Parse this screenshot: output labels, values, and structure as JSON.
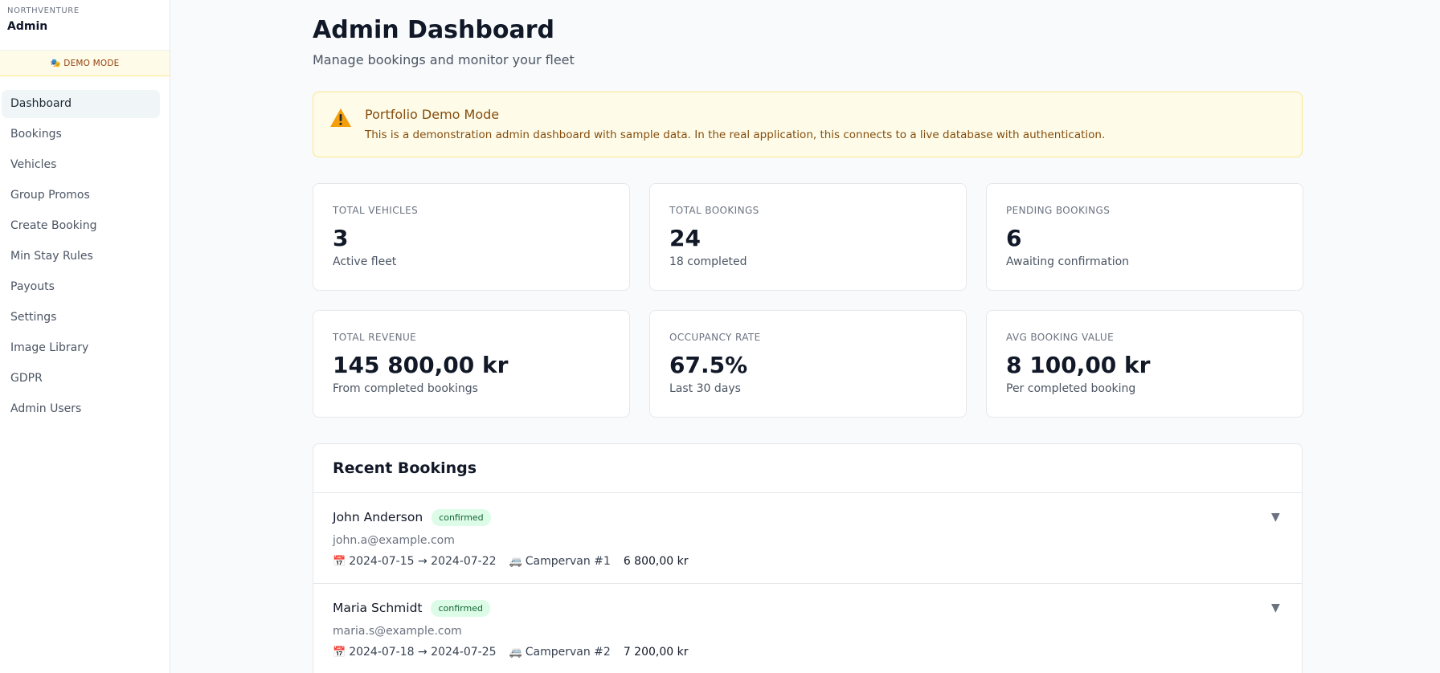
{
  "sidebar": {
    "brand_small": "NORTHVENTURE",
    "brand_title": "Admin",
    "demo_label": "🎭 DEMO MODE",
    "items": [
      {
        "label": "Dashboard",
        "active": true
      },
      {
        "label": "Bookings"
      },
      {
        "label": "Vehicles"
      },
      {
        "label": "Group Promos"
      },
      {
        "label": "Create Booking"
      },
      {
        "label": "Min Stay Rules"
      },
      {
        "label": "Payouts"
      },
      {
        "label": "Settings"
      },
      {
        "label": "Image Library"
      },
      {
        "label": "GDPR"
      },
      {
        "label": "Admin Users"
      }
    ]
  },
  "header": {
    "title": "Admin Dashboard",
    "subtitle": "Manage bookings and monitor your fleet"
  },
  "alert": {
    "icon": "warning-icon",
    "title": "Portfolio Demo Mode",
    "text": "This is a demonstration admin dashboard with sample data. In the real application, this connects to a live database with authentication."
  },
  "stats": [
    {
      "label": "TOTAL VEHICLES",
      "value": "3",
      "sub": "Active fleet"
    },
    {
      "label": "TOTAL BOOKINGS",
      "value": "24",
      "sub": "18 completed"
    },
    {
      "label": "PENDING BOOKINGS",
      "value": "6",
      "sub": "Awaiting confirmation"
    },
    {
      "label": "TOTAL REVENUE",
      "value": "145 800,00 kr",
      "sub": "From completed bookings"
    },
    {
      "label": "OCCUPANCY RATE",
      "value": "67.5%",
      "sub": "Last 30 days"
    },
    {
      "label": "AVG BOOKING VALUE",
      "value": "8 100,00 kr",
      "sub": "Per completed booking"
    }
  ],
  "recent": {
    "title": "Recent Bookings",
    "rows": [
      {
        "name": "John Anderson",
        "status": "confirmed",
        "email": "john.a@example.com",
        "dates": "2024-07-15 → 2024-07-22",
        "vehicle": "Campervan #1",
        "price": "6 800,00 kr"
      },
      {
        "name": "Maria Schmidt",
        "status": "confirmed",
        "email": "maria.s@example.com",
        "dates": "2024-07-18 → 2024-07-25",
        "vehicle": "Campervan #2",
        "price": "7 200,00 kr"
      }
    ]
  },
  "icons": {
    "calendar": "📅",
    "vehicle": "🚐",
    "chevron": "▼"
  },
  "colors": {
    "accent_bg": "#fefce8",
    "accent_text": "#854d0e",
    "badge_bg": "#dcfce7",
    "badge_text": "#166534"
  }
}
